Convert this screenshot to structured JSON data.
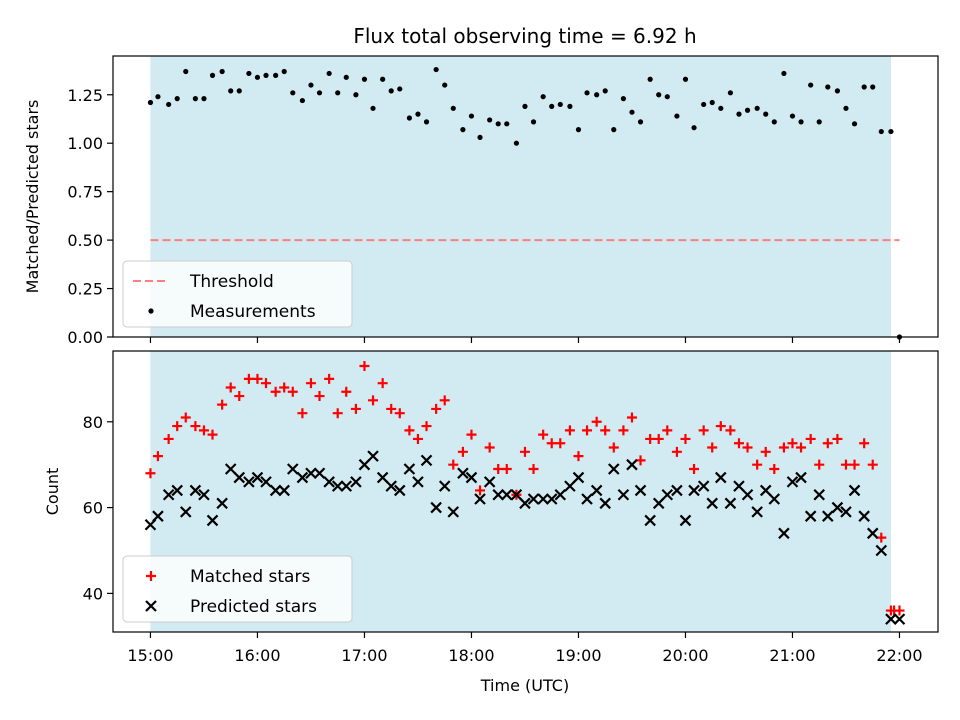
{
  "chart_data": {
    "title": "Flux total observing time = 6.92 h",
    "xlabel": "Time (UTC)",
    "x_ticks": [
      "15:00",
      "16:00",
      "17:00",
      "18:00",
      "19:00",
      "20:00",
      "21:00",
      "22:00"
    ],
    "x_range_hours": [
      14.65,
      22.36
    ],
    "observing_window_hours": [
      15.0,
      21.92
    ],
    "colors": {
      "shade": "#add8e6",
      "threshold": "#ff7f7f",
      "measurements": "#000000",
      "matched": "#ff0000",
      "predicted": "#000000"
    },
    "panels": [
      {
        "type": "scatter",
        "ylabel": "Matched/Predicted stars",
        "ylim": [
          0,
          1.45
        ],
        "y_ticks": [
          "0.00",
          "0.25",
          "0.50",
          "0.75",
          "1.00",
          "1.25"
        ],
        "legend_position": "lower-left",
        "legend": [
          "Threshold",
          "Measurements"
        ],
        "threshold": {
          "name": "Threshold",
          "y": 0.5,
          "x_range": [
            15.0,
            22.0
          ]
        },
        "series": [
          {
            "name": "Measurements",
            "x": [
              15.0,
              15.07,
              15.17,
              15.25,
              15.33,
              15.42,
              15.5,
              15.58,
              15.67,
              15.75,
              15.83,
              15.92,
              16.0,
              16.08,
              16.17,
              16.25,
              16.33,
              16.42,
              16.5,
              16.58,
              16.67,
              16.75,
              16.83,
              16.92,
              17.0,
              17.08,
              17.17,
              17.25,
              17.33,
              17.42,
              17.5,
              17.58,
              17.67,
              17.75,
              17.83,
              17.92,
              18.0,
              18.08,
              18.17,
              18.25,
              18.33,
              18.42,
              18.5,
              18.58,
              18.67,
              18.75,
              18.83,
              18.92,
              19.0,
              19.08,
              19.17,
              19.25,
              19.33,
              19.42,
              19.5,
              19.58,
              19.67,
              19.75,
              19.83,
              19.92,
              20.0,
              20.08,
              20.17,
              20.25,
              20.33,
              20.42,
              20.5,
              20.58,
              20.67,
              20.75,
              20.83,
              20.92,
              21.0,
              21.08,
              21.17,
              21.25,
              21.33,
              21.42,
              21.5,
              21.58,
              21.67,
              21.75,
              21.83,
              21.92,
              22.0
            ],
            "y": [
              1.21,
              1.24,
              1.2,
              1.23,
              1.37,
              1.23,
              1.23,
              1.35,
              1.37,
              1.27,
              1.27,
              1.36,
              1.34,
              1.35,
              1.35,
              1.37,
              1.26,
              1.22,
              1.3,
              1.26,
              1.36,
              1.26,
              1.34,
              1.25,
              1.33,
              1.18,
              1.33,
              1.27,
              1.28,
              1.13,
              1.15,
              1.11,
              1.38,
              1.3,
              1.18,
              1.07,
              1.14,
              1.03,
              1.12,
              1.1,
              1.1,
              1.0,
              1.19,
              1.11,
              1.24,
              1.19,
              1.2,
              1.19,
              1.07,
              1.26,
              1.25,
              1.27,
              1.07,
              1.23,
              1.16,
              1.11,
              1.33,
              1.25,
              1.24,
              1.14,
              1.33,
              1.08,
              1.2,
              1.21,
              1.18,
              1.26,
              1.15,
              1.17,
              1.18,
              1.15,
              1.11,
              1.36,
              1.14,
              1.11,
              1.3,
              1.11,
              1.29,
              1.27,
              1.18,
              1.1,
              1.29,
              1.29,
              1.06,
              1.06,
              0.0
            ]
          }
        ]
      },
      {
        "type": "scatter",
        "ylabel": "Count",
        "ylim": [
          31,
          96.5
        ],
        "y_ticks": [
          "40",
          "60",
          "80"
        ],
        "legend_position": "lower-left",
        "legend": [
          "Matched stars",
          "Predicted stars"
        ],
        "series": [
          {
            "name": "Matched stars",
            "x": [
              15.0,
              15.07,
              15.17,
              15.25,
              15.33,
              15.42,
              15.5,
              15.58,
              15.67,
              15.75,
              15.83,
              15.92,
              16.0,
              16.08,
              16.17,
              16.25,
              16.33,
              16.42,
              16.5,
              16.58,
              16.67,
              16.75,
              16.83,
              16.92,
              17.0,
              17.08,
              17.17,
              17.25,
              17.33,
              17.42,
              17.5,
              17.58,
              17.67,
              17.75,
              17.83,
              17.92,
              18.0,
              18.08,
              18.17,
              18.25,
              18.33,
              18.42,
              18.5,
              18.58,
              18.67,
              18.75,
              18.83,
              18.92,
              19.0,
              19.08,
              19.17,
              19.25,
              19.33,
              19.42,
              19.5,
              19.58,
              19.67,
              19.75,
              19.83,
              19.92,
              20.0,
              20.08,
              20.17,
              20.25,
              20.33,
              20.42,
              20.5,
              20.58,
              20.67,
              20.75,
              20.83,
              20.92,
              21.0,
              21.08,
              21.17,
              21.25,
              21.33,
              21.42,
              21.5,
              21.58,
              21.67,
              21.75,
              21.83,
              21.92,
              21.95,
              22.0
            ],
            "y": [
              68,
              72,
              76,
              79,
              81,
              79,
              78,
              77,
              84,
              88,
              86,
              90,
              90,
              89,
              87,
              88,
              87,
              82,
              89,
              86,
              90,
              82,
              87,
              83,
              93,
              85,
              89,
              83,
              82,
              78,
              76,
              79,
              83,
              85,
              70,
              73,
              77,
              64,
              74,
              69,
              69,
              63,
              73,
              69,
              77,
              75,
              75,
              78,
              72,
              78,
              80,
              78,
              74,
              78,
              81,
              71,
              76,
              76,
              78,
              73,
              76,
              69,
              78,
              74,
              79,
              78,
              75,
              74,
              70,
              73,
              69,
              74,
              75,
              74,
              76,
              70,
              75,
              76,
              70,
              70,
              75,
              70,
              53,
              36,
              36,
              36
            ]
          },
          {
            "name": "Predicted stars",
            "x": [
              15.0,
              15.07,
              15.17,
              15.25,
              15.33,
              15.42,
              15.5,
              15.58,
              15.67,
              15.75,
              15.83,
              15.92,
              16.0,
              16.08,
              16.17,
              16.25,
              16.33,
              16.42,
              16.5,
              16.58,
              16.67,
              16.75,
              16.83,
              16.92,
              17.0,
              17.08,
              17.17,
              17.25,
              17.33,
              17.42,
              17.5,
              17.58,
              17.67,
              17.75,
              17.83,
              17.92,
              18.0,
              18.08,
              18.17,
              18.25,
              18.33,
              18.42,
              18.5,
              18.58,
              18.67,
              18.75,
              18.83,
              18.92,
              19.0,
              19.08,
              19.17,
              19.25,
              19.33,
              19.42,
              19.5,
              19.58,
              19.67,
              19.75,
              19.83,
              19.92,
              20.0,
              20.08,
              20.17,
              20.25,
              20.33,
              20.42,
              20.5,
              20.58,
              20.67,
              20.75,
              20.83,
              20.92,
              21.0,
              21.08,
              21.17,
              21.25,
              21.33,
              21.42,
              21.5,
              21.58,
              21.67,
              21.75,
              21.83,
              21.92,
              22.0
            ],
            "y": [
              56,
              58,
              63,
              64,
              59,
              64,
              63,
              57,
              61,
              69,
              67,
              66,
              67,
              66,
              64,
              64,
              69,
              67,
              68,
              68,
              66,
              65,
              65,
              66,
              70,
              72,
              67,
              65,
              64,
              69,
              66,
              71,
              60,
              65,
              59,
              68,
              67,
              62,
              66,
              63,
              63,
              63,
              61,
              62,
              62,
              62,
              63,
              65,
              67,
              62,
              64,
              61,
              69,
              63,
              70,
              64,
              57,
              61,
              63,
              64,
              57,
              64,
              65,
              61,
              67,
              61,
              65,
              63,
              59,
              64,
              62,
              54,
              66,
              67,
              58,
              63,
              58,
              60,
              59,
              64,
              58,
              54,
              50,
              34,
              34
            ]
          }
        ]
      }
    ]
  }
}
